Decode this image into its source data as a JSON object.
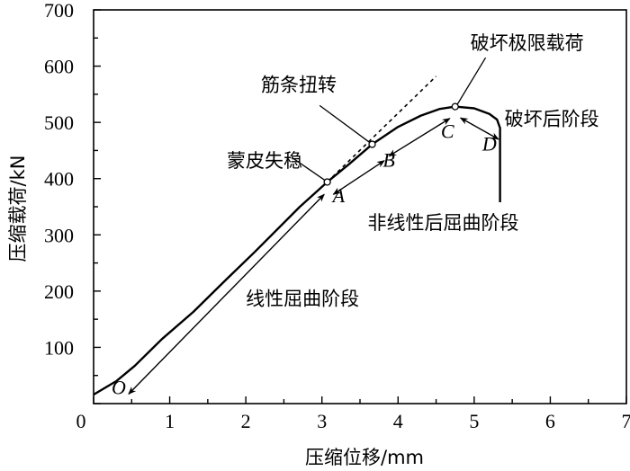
{
  "chart_data": {
    "type": "line",
    "title": "",
    "xlabel": "压缩位移/mm",
    "ylabel": "压缩载荷/kN",
    "xlim": [
      0,
      7
    ],
    "ylim": [
      0,
      700
    ],
    "xticks": [
      0,
      1,
      2,
      3,
      4,
      5,
      6,
      7
    ],
    "yticks": [
      100,
      200,
      300,
      400,
      500,
      600,
      700
    ],
    "grid": false,
    "series": [
      {
        "name": "load-displacement",
        "x": [
          0,
          0.3,
          0.54,
          0.9,
          1.31,
          1.7,
          2.12,
          2.71,
          3.07,
          3.35,
          3.66,
          4.0,
          4.3,
          4.55,
          4.75,
          5.0,
          5.2,
          5.3,
          5.34,
          5.34
        ],
        "y": [
          16,
          40,
          67,
          115,
          163,
          215,
          270,
          350,
          394,
          425,
          461,
          492,
          512,
          524,
          528,
          525,
          515,
          505,
          490,
          358
        ]
      },
      {
        "name": "linear-extension",
        "style": "dashed",
        "x": [
          3.07,
          4.5
        ],
        "y": [
          394,
          582
        ]
      }
    ],
    "markers": [
      {
        "name": "skin-buckling",
        "x": 3.07,
        "y": 394
      },
      {
        "name": "stringer-torsion",
        "x": 3.66,
        "y": 461
      },
      {
        "name": "ultimate-load",
        "x": 4.75,
        "y": 528
      }
    ],
    "point_labels": [
      {
        "text": "O",
        "x": 0.33,
        "y": 17
      },
      {
        "text": "A",
        "x": 3.22,
        "y": 358
      },
      {
        "text": "B",
        "x": 3.88,
        "y": 421
      },
      {
        "text": "C",
        "x": 4.65,
        "y": 472
      },
      {
        "text": "D",
        "x": 5.2,
        "y": 450
      }
    ],
    "stage_arrows": [
      {
        "from": [
          3.03,
          372
        ],
        "to": [
          0.46,
          17
        ]
      },
      {
        "from": [
          3.15,
          372
        ],
        "to": [
          3.82,
          432
        ]
      },
      {
        "from": [
          3.88,
          440
        ],
        "to": [
          4.68,
          507
        ]
      },
      {
        "from": [
          4.82,
          508
        ],
        "to": [
          5.32,
          470
        ]
      }
    ],
    "annotations": [
      {
        "text": "蒙皮失稳",
        "x": 1.75,
        "y": 420,
        "leader": [
          [
            2.6,
            438
          ],
          [
            3.05,
            396
          ]
        ]
      },
      {
        "text": "筋条扭转",
        "x": 2.2,
        "y": 555,
        "leader": [
          [
            2.97,
            530
          ],
          [
            3.64,
            463
          ]
        ]
      },
      {
        "text": "破坏极限载荷",
        "x": 4.95,
        "y": 630,
        "leader": [
          [
            5.15,
            615
          ],
          [
            4.77,
            530
          ]
        ]
      },
      {
        "text": "破坏后阶段",
        "x": 5.4,
        "y": 495,
        "leader": null
      },
      {
        "text": "非线性后屈曲阶段",
        "x": 3.6,
        "y": 310,
        "leader": null
      },
      {
        "text": "线性屈曲阶段",
        "x": 2.0,
        "y": 175,
        "leader": null
      }
    ]
  }
}
